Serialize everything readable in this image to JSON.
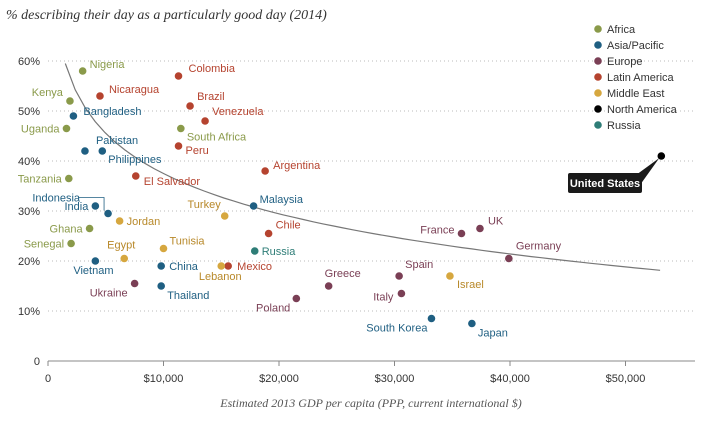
{
  "chart_data": {
    "type": "scatter",
    "title": "% describing their day as a particularly good day (2014)",
    "xlabel": "Estimated 2013 GDP per capita (PPP, current international $)",
    "ylabel": "",
    "xlim": [
      0,
      56000
    ],
    "ylim": [
      0,
      65
    ],
    "x_ticks": [
      {
        "value": 0,
        "label": "0"
      },
      {
        "value": 10000,
        "label": "$10,000"
      },
      {
        "value": 20000,
        "label": "$20,000"
      },
      {
        "value": 30000,
        "label": "$30,000"
      },
      {
        "value": 40000,
        "label": "$40,000"
      },
      {
        "value": 50000,
        "label": "$50,000"
      }
    ],
    "y_ticks": [
      {
        "value": 0,
        "label": "0"
      },
      {
        "value": 10,
        "label": "10%"
      },
      {
        "value": 20,
        "label": "20%"
      },
      {
        "value": 30,
        "label": "30%"
      },
      {
        "value": 40,
        "label": "40%"
      },
      {
        "value": 50,
        "label": "50%"
      },
      {
        "value": 60,
        "label": "60%"
      }
    ],
    "grid": "horizontal dotted",
    "legend_position": "top-right",
    "legend": [
      {
        "name": "Africa",
        "color": "#8a9a4a",
        "label_color": "#8a9a4a"
      },
      {
        "name": "Asia/Pacific",
        "color": "#1f5f82",
        "label_color": "#1f5f82"
      },
      {
        "name": "Europe",
        "color": "#7a3f55",
        "label_color": "#7a3f55"
      },
      {
        "name": "Latin America",
        "color": "#b5432f",
        "label_color": "#b5432f"
      },
      {
        "name": "Middle East",
        "color": "#d6a73f",
        "label_color": "#b8892a"
      },
      {
        "name": "North America",
        "color": "#000000",
        "label_color": "#000000"
      },
      {
        "name": "Russia",
        "color": "#2e7d77",
        "label_color": "#2e7d77"
      }
    ],
    "points": [
      {
        "name": "Nigeria",
        "region": "Africa",
        "x": 3000,
        "y": 58
      },
      {
        "name": "Kenya",
        "region": "Africa",
        "x": 1900,
        "y": 52
      },
      {
        "name": "Uganda",
        "region": "Africa",
        "x": 1600,
        "y": 46.5
      },
      {
        "name": "South Africa",
        "region": "Africa",
        "x": 11500,
        "y": 46.5
      },
      {
        "name": "Tanzania",
        "region": "Africa",
        "x": 1800,
        "y": 36.5
      },
      {
        "name": "Ghana",
        "region": "Africa",
        "x": 3600,
        "y": 26.5
      },
      {
        "name": "Senegal",
        "region": "Africa",
        "x": 2000,
        "y": 23.5
      },
      {
        "name": "Bangladesh",
        "region": "Asia/Pacific",
        "x": 2200,
        "y": 49
      },
      {
        "name": "Pakistan",
        "region": "Asia/Pacific",
        "x": 3200,
        "y": 42
      },
      {
        "name": "Philippines",
        "region": "Asia/Pacific",
        "x": 4700,
        "y": 42
      },
      {
        "name": "Indonesia",
        "region": "Asia/Pacific",
        "x": 5200,
        "y": 29.5
      },
      {
        "name": "India",
        "region": "Asia/Pacific",
        "x": 4100,
        "y": 31
      },
      {
        "name": "Vietnam",
        "region": "Asia/Pacific",
        "x": 4100,
        "y": 20
      },
      {
        "name": "China",
        "region": "Asia/Pacific",
        "x": 9800,
        "y": 19
      },
      {
        "name": "Thailand",
        "region": "Asia/Pacific",
        "x": 9800,
        "y": 15
      },
      {
        "name": "Malaysia",
        "region": "Asia/Pacific",
        "x": 17800,
        "y": 31
      },
      {
        "name": "South Korea",
        "region": "Asia/Pacific",
        "x": 33200,
        "y": 8.5
      },
      {
        "name": "Japan",
        "region": "Asia/Pacific",
        "x": 36700,
        "y": 7.5
      },
      {
        "name": "Ukraine",
        "region": "Europe",
        "x": 7500,
        "y": 15.5
      },
      {
        "name": "Poland",
        "region": "Europe",
        "x": 21500,
        "y": 12.5
      },
      {
        "name": "Greece",
        "region": "Europe",
        "x": 24300,
        "y": 15
      },
      {
        "name": "Spain",
        "region": "Europe",
        "x": 30400,
        "y": 17
      },
      {
        "name": "Italy",
        "region": "Europe",
        "x": 30600,
        "y": 13.5
      },
      {
        "name": "France",
        "region": "Europe",
        "x": 35800,
        "y": 25.5
      },
      {
        "name": "UK",
        "region": "Europe",
        "x": 37400,
        "y": 26.5
      },
      {
        "name": "Germany",
        "region": "Europe",
        "x": 39900,
        "y": 20.5
      },
      {
        "name": "Colombia",
        "region": "Latin America",
        "x": 11300,
        "y": 57
      },
      {
        "name": "Nicaragua",
        "region": "Latin America",
        "x": 4500,
        "y": 53
      },
      {
        "name": "Brazil",
        "region": "Latin America",
        "x": 12300,
        "y": 51
      },
      {
        "name": "Venezuela",
        "region": "Latin America",
        "x": 13600,
        "y": 48
      },
      {
        "name": "Peru",
        "region": "Latin America",
        "x": 11300,
        "y": 43
      },
      {
        "name": "El Salvador",
        "region": "Latin America",
        "x": 7600,
        "y": 37
      },
      {
        "name": "Argentina",
        "region": "Latin America",
        "x": 18800,
        "y": 38
      },
      {
        "name": "Chile",
        "region": "Latin America",
        "x": 19100,
        "y": 25.5
      },
      {
        "name": "Mexico",
        "region": "Latin America",
        "x": 15600,
        "y": 19
      },
      {
        "name": "Jordan",
        "region": "Middle East",
        "x": 6200,
        "y": 28
      },
      {
        "name": "Egypt",
        "region": "Middle East",
        "x": 6600,
        "y": 20.5
      },
      {
        "name": "Tunisia",
        "region": "Middle East",
        "x": 10000,
        "y": 22.5
      },
      {
        "name": "Turkey",
        "region": "Middle East",
        "x": 15300,
        "y": 29
      },
      {
        "name": "Lebanon",
        "region": "Middle East",
        "x": 15000,
        "y": 19
      },
      {
        "name": "Israel",
        "region": "Middle East",
        "x": 34800,
        "y": 17
      },
      {
        "name": "United States",
        "region": "North America",
        "x": 53100,
        "y": 41
      },
      {
        "name": "Russia",
        "region": "Russia",
        "x": 17900,
        "y": 22
      }
    ],
    "trend_line": {
      "type": "logarithmic",
      "from_x": 1500,
      "to_x": 53000
    }
  }
}
